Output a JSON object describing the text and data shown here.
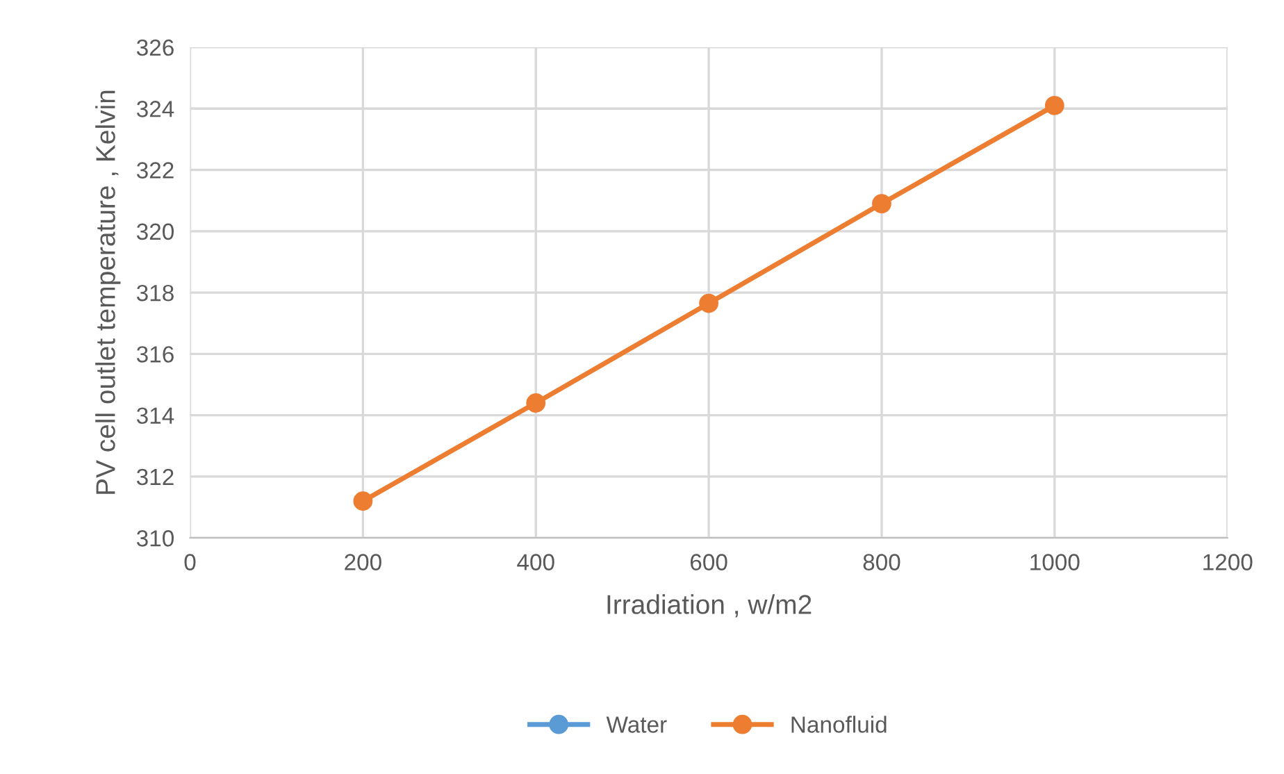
{
  "chart_data": {
    "type": "line",
    "xlabel": "Irradiation , w/m2",
    "ylabel": "PV cell outlet temperature , Kelvin",
    "x": [
      200,
      400,
      600,
      800,
      1000
    ],
    "series": [
      {
        "name": "Water",
        "color": "#5b9bd5",
        "values": [
          null,
          null,
          null,
          null,
          null
        ]
      },
      {
        "name": "Nanofluid",
        "color": "#ed7d31",
        "values": [
          311.2,
          314.4,
          317.65,
          320.9,
          324.1
        ]
      }
    ],
    "xlim": [
      0,
      1200
    ],
    "xticks": [
      0,
      200,
      400,
      600,
      800,
      1000,
      1200
    ],
    "ylim": [
      310,
      326
    ],
    "yticks": [
      310,
      312,
      314,
      316,
      318,
      320,
      322,
      324,
      326
    ],
    "grid": true,
    "legend": "bottom",
    "marker": "circle",
    "line_style": "solid"
  }
}
